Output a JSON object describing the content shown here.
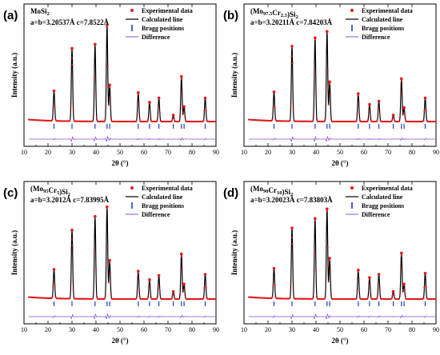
{
  "figure": {
    "colors": {
      "experimental": "#e41a1c",
      "calculated": "#000000",
      "bragg": "#1f3fbf",
      "difference": "#8a4fd8"
    }
  },
  "chart_data": [
    {
      "type": "line",
      "panel": "(a)",
      "composition": "MoSi2",
      "composition_parts": [
        {
          "text": "MoSi",
          "sub": false
        },
        {
          "text": "2",
          "sub": true
        }
      ],
      "lattice": "a=b=3.20537Å    c=7.8522Å",
      "xlabel": "2θ (°)",
      "ylabel": "Intensity (a.u.)",
      "xlim": [
        10,
        90
      ],
      "xticks": [
        10,
        20,
        30,
        40,
        50,
        60,
        70,
        80,
        90
      ],
      "legend": {
        "position": "top-right",
        "entries": [
          "Experimental data",
          "Calculated line",
          "Bragg positions",
          "Difference"
        ]
      },
      "peaks": [
        {
          "pos": 22.5,
          "rel": 0.28
        },
        {
          "pos": 30.0,
          "rel": 0.68
        },
        {
          "pos": 39.6,
          "rel": 0.72
        },
        {
          "pos": 44.6,
          "rel": 0.9
        },
        {
          "pos": 45.7,
          "rel": 0.34
        },
        {
          "pos": 57.6,
          "rel": 0.27
        },
        {
          "pos": 62.3,
          "rel": 0.18
        },
        {
          "pos": 66.2,
          "rel": 0.22
        },
        {
          "pos": 72.2,
          "rel": 0.06
        },
        {
          "pos": 75.6,
          "rel": 0.42
        },
        {
          "pos": 76.7,
          "rel": 0.14
        },
        {
          "pos": 85.5,
          "rel": 0.22
        }
      ],
      "bragg_positions": [
        22.5,
        30.0,
        39.6,
        44.6,
        45.7,
        57.6,
        62.3,
        66.2,
        72.2,
        75.6,
        76.7,
        85.5
      ]
    },
    {
      "type": "line",
      "panel": "(b)",
      "composition": "(Mo97.5Cr2.5)Si2",
      "composition_parts": [
        {
          "text": "(Mo",
          "sub": false
        },
        {
          "text": "97.5",
          "sub": true
        },
        {
          "text": "Cr",
          "sub": false
        },
        {
          "text": "2.5",
          "sub": true
        },
        {
          "text": ")Si",
          "sub": false
        },
        {
          "text": "2",
          "sub": true
        }
      ],
      "lattice": "a=b=3.20211Å    c=7.84203Å",
      "xlabel": "2θ (°)",
      "ylabel": "Intensity (a.u.)",
      "xlim": [
        10,
        90
      ],
      "xticks": [
        10,
        20,
        30,
        40,
        50,
        60,
        70,
        80,
        90
      ],
      "legend": {
        "position": "top-right",
        "entries": [
          "Experimental data",
          "Calculated line",
          "Bragg positions",
          "Difference"
        ]
      },
      "peaks": [
        {
          "pos": 22.5,
          "rel": 0.27
        },
        {
          "pos": 30.0,
          "rel": 0.7
        },
        {
          "pos": 39.6,
          "rel": 0.78
        },
        {
          "pos": 44.6,
          "rel": 0.84
        },
        {
          "pos": 45.7,
          "rel": 0.37
        },
        {
          "pos": 57.6,
          "rel": 0.26
        },
        {
          "pos": 62.3,
          "rel": 0.16
        },
        {
          "pos": 66.2,
          "rel": 0.19
        },
        {
          "pos": 72.2,
          "rel": 0.06
        },
        {
          "pos": 75.6,
          "rel": 0.4
        },
        {
          "pos": 76.7,
          "rel": 0.13
        },
        {
          "pos": 85.5,
          "rel": 0.22
        }
      ],
      "bragg_positions": [
        22.5,
        30.0,
        39.6,
        44.6,
        45.7,
        57.6,
        62.3,
        66.2,
        72.2,
        75.6,
        76.7,
        85.5
      ]
    },
    {
      "type": "line",
      "panel": "(c)",
      "composition": "(Mo95Cr5)Si2",
      "composition_parts": [
        {
          "text": "(Mo",
          "sub": false
        },
        {
          "text": "95",
          "sub": true
        },
        {
          "text": "Cr",
          "sub": false
        },
        {
          "text": "5",
          "sub": true
        },
        {
          "text": ")Si",
          "sub": false
        },
        {
          "text": "2",
          "sub": true
        }
      ],
      "lattice": "a=b=3.2012Å    c=7.83995Å",
      "xlabel": "2θ (°)",
      "ylabel": "Intensity (a.u.)",
      "xlim": [
        10,
        90
      ],
      "xticks": [
        10,
        20,
        30,
        40,
        50,
        60,
        70,
        80,
        90
      ],
      "legend": {
        "position": "top-right",
        "entries": [
          "Experimental data",
          "Calculated line",
          "Bragg positions",
          "Difference"
        ]
      },
      "peaks": [
        {
          "pos": 22.5,
          "rel": 0.27
        },
        {
          "pos": 30.0,
          "rel": 0.64
        },
        {
          "pos": 39.6,
          "rel": 0.77
        },
        {
          "pos": 44.6,
          "rel": 0.86
        },
        {
          "pos": 45.7,
          "rel": 0.36
        },
        {
          "pos": 57.6,
          "rel": 0.26
        },
        {
          "pos": 62.3,
          "rel": 0.18
        },
        {
          "pos": 66.2,
          "rel": 0.22
        },
        {
          "pos": 72.2,
          "rel": 0.07
        },
        {
          "pos": 75.6,
          "rel": 0.42
        },
        {
          "pos": 76.7,
          "rel": 0.14
        },
        {
          "pos": 85.5,
          "rel": 0.23
        }
      ],
      "bragg_positions": [
        22.5,
        30.0,
        39.6,
        44.6,
        45.7,
        57.6,
        62.3,
        66.2,
        72.2,
        75.6,
        76.7,
        85.5
      ]
    },
    {
      "type": "line",
      "panel": "(d)",
      "composition": "(Mo90Cr10)Si2",
      "composition_parts": [
        {
          "text": "(Mo",
          "sub": false
        },
        {
          "text": "90",
          "sub": true
        },
        {
          "text": "Cr",
          "sub": false
        },
        {
          "text": "10",
          "sub": true
        },
        {
          "text": ")Si",
          "sub": false
        },
        {
          "text": "2",
          "sub": true
        }
      ],
      "lattice": "a=b=3.20023Å    c=7.83803Å",
      "xlabel": "2θ (°)",
      "ylabel": "Intensity (a.u.)",
      "xlim": [
        10,
        90
      ],
      "xticks": [
        10,
        20,
        30,
        40,
        50,
        60,
        70,
        80,
        90
      ],
      "legend": {
        "position": "top-right",
        "entries": [
          "Experimental data",
          "Calculated line",
          "Bragg positions",
          "Difference"
        ]
      },
      "peaks": [
        {
          "pos": 22.5,
          "rel": 0.28
        },
        {
          "pos": 30.0,
          "rel": 0.66
        },
        {
          "pos": 39.6,
          "rel": 0.75
        },
        {
          "pos": 44.6,
          "rel": 0.84
        },
        {
          "pos": 45.7,
          "rel": 0.38
        },
        {
          "pos": 57.6,
          "rel": 0.27
        },
        {
          "pos": 62.3,
          "rel": 0.2
        },
        {
          "pos": 66.2,
          "rel": 0.23
        },
        {
          "pos": 72.2,
          "rel": 0.07
        },
        {
          "pos": 75.6,
          "rel": 0.43
        },
        {
          "pos": 76.7,
          "rel": 0.14
        },
        {
          "pos": 85.5,
          "rel": 0.24
        }
      ],
      "bragg_positions": [
        22.5,
        30.0,
        39.6,
        44.6,
        45.7,
        57.6,
        62.3,
        66.2,
        72.2,
        75.6,
        76.7,
        85.5
      ]
    }
  ]
}
